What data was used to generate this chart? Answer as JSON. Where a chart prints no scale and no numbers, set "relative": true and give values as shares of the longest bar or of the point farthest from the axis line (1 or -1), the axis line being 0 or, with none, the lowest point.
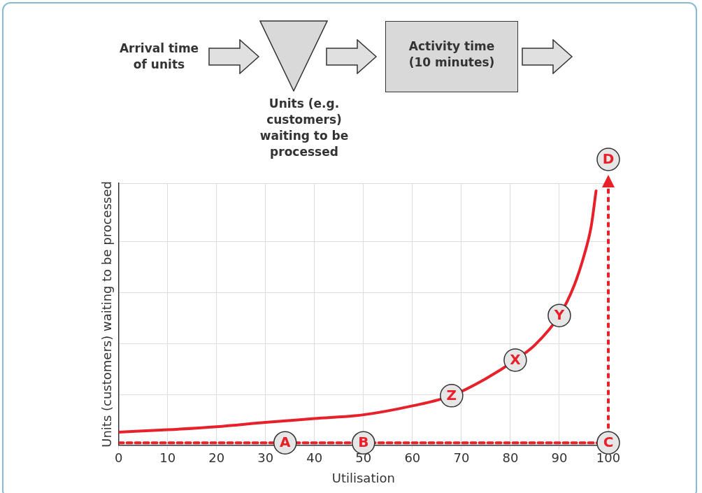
{
  "chart_data": {
    "type": "line",
    "relative": true,
    "xlabel": "Utilisation",
    "ylabel": "Units (customers) waiting to be processed",
    "xlim": [
      0,
      100
    ],
    "xticks": [
      0,
      10,
      20,
      30,
      40,
      50,
      60,
      70,
      80,
      90,
      100
    ],
    "grid": true,
    "legend": false,
    "series": [
      {
        "color": "#e8202a",
        "line_style": "solid",
        "x": [
          0,
          10,
          20,
          30,
          40,
          50,
          60,
          68,
          75,
          81,
          85,
          90,
          93,
          95,
          96.5,
          97.5
        ],
        "values": [
          0.052,
          0.061,
          0.073,
          0.09,
          0.105,
          0.12,
          0.155,
          0.195,
          0.262,
          0.335,
          0.394,
          0.51,
          0.627,
          0.743,
          0.86,
          1
        ]
      },
      {
        "color": "#e8202a",
        "line_style": "dashed",
        "x": [
          0,
          100
        ],
        "values": [
          0.01,
          0.01
        ]
      }
    ],
    "ref_lines": [
      {
        "axis": "x",
        "value": 100,
        "color": "#e8202a",
        "line_style": "dashed"
      }
    ],
    "annotations": [
      "Arrival time of units",
      "Units (e.g. customers) waiting to be processed",
      "Activity time (10 minutes)",
      {
        "text": "A",
        "x": 34,
        "y": 0.01
      },
      {
        "text": "B",
        "x": 50,
        "y": 0.01
      },
      {
        "text": "C",
        "x": 100,
        "y": 0.01
      },
      "D",
      {
        "text": "Z",
        "x": 68,
        "y": 0.195
      },
      {
        "text": "X",
        "x": 81,
        "y": 0.335
      },
      {
        "text": "Y",
        "x": 90,
        "y": 0.51
      }
    ]
  }
}
